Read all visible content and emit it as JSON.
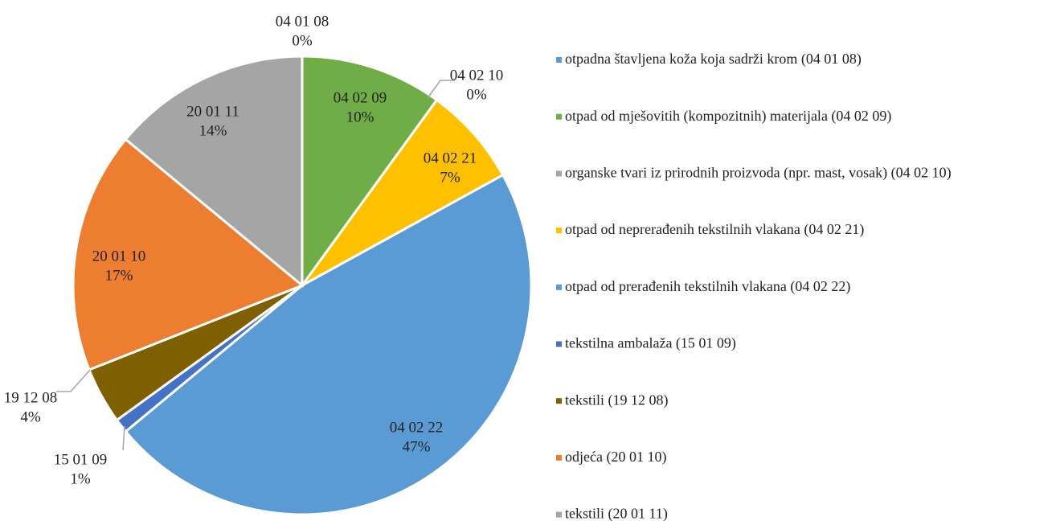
{
  "chart_data": {
    "type": "pie",
    "categories": [
      "otpadna štavljena koža koja sadrži krom (04 01 08)",
      "otpad od mješovitih (kompozitnih) materijala (04 02 09)",
      "organske tvari iz prirodnih proizvoda (npr. mast, vosak) (04 02 10)",
      "otpad od neprerađenih tekstilnih vlakana (04 02 21)",
      "otpad od prerađenih tekstilnih vlakana (04 02 22)",
      "tekstilna ambalaža (15 01 09)",
      "tekstili (19 12 08)",
      "odjeća (20 01 10)",
      "tekstili (20 01 11)"
    ],
    "data_label_codes": [
      "04 01 08",
      "04 02 09",
      "04 02 10",
      "04 02 21",
      "04 02 22",
      "15 01 09",
      "19 12 08",
      "20 01 10",
      "20 01 11"
    ],
    "values": [
      0,
      10,
      0,
      7,
      47,
      1,
      4,
      17,
      14
    ],
    "value_labels": [
      "0%",
      "10%",
      "0%",
      "7%",
      "47%",
      "1%",
      "4%",
      "17%",
      "14%"
    ],
    "colors": [
      "#5b9bd5",
      "#70ad47",
      "#a5a5a5",
      "#ffc000",
      "#5b9bd5",
      "#4472c4",
      "#7f6000",
      "#ed7d31",
      "#a5a5a5"
    ],
    "legend": "right"
  }
}
